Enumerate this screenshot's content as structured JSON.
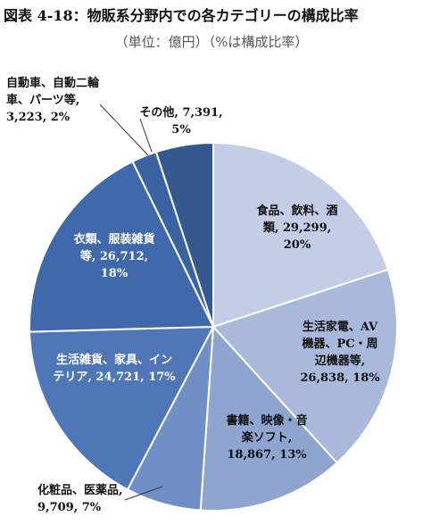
{
  "title": "図表 4-18：物販系分野内での各カテゴリーの構成比率",
  "subtitle": "（単位：億円）（%は構成比率）",
  "chart_data": {
    "type": "pie",
    "slices": [
      {
        "label_lines": [
          "食品、飲料、酒",
          "類, 29,299,",
          "20%"
        ],
        "value": 29299,
        "percent": 20,
        "color": "#c4cde6",
        "text_color": "#111111"
      },
      {
        "label_lines": [
          "生活家電、AV",
          "機器、PC・周",
          "辺機器等,",
          "26,838, 18%"
        ],
        "value": 26838,
        "percent": 18,
        "color": "#a8b9db",
        "text_color": "#111111"
      },
      {
        "label_lines": [
          "書籍、映像・音",
          "楽ソフト,",
          "18,867, 13%"
        ],
        "value": 18867,
        "percent": 13,
        "color": "#8ea5d0",
        "text_color": "#111111"
      },
      {
        "label_lines": [
          "化粧品、医薬品,",
          "9,709, 7%"
        ],
        "value": 9709,
        "percent": 7,
        "color": "#6f8fc6",
        "text_color": "#111111"
      },
      {
        "label_lines": [
          "生活雑貨、家具、イン",
          "テリア, 24,721, 17%"
        ],
        "value": 24721,
        "percent": 17,
        "color": "#4f77b7",
        "text_color": "#ffffff"
      },
      {
        "label_lines": [
          "衣類、服装雑貨",
          "等, 26,712,",
          "18%"
        ],
        "value": 26712,
        "percent": 18,
        "color": "#4069ac",
        "text_color": "#ffffff"
      },
      {
        "label_lines": [
          "自動車、自動二輪",
          "車、パーツ等,",
          "3,223, 2%"
        ],
        "value": 3223,
        "percent": 2,
        "color": "#3b62a3",
        "text_color": "#111111"
      },
      {
        "label_lines": [
          "その他, 7,391,",
          "5%"
        ],
        "value": 7391,
        "percent": 5,
        "color": "#35598f",
        "text_color": "#111111"
      }
    ]
  }
}
